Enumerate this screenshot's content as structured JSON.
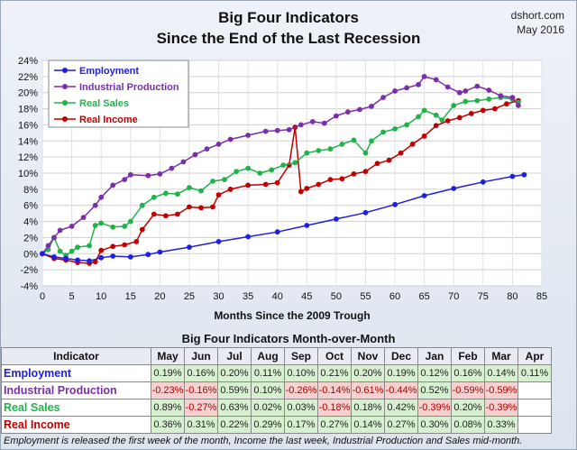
{
  "header": {
    "title_line1": "Big Four Indicators",
    "title_line2": "Since the End of the Last Recession",
    "source": "dshort.com",
    "date": "May 2016"
  },
  "colors": {
    "employment": "#1f1fe0",
    "industrial_production": "#7a2fa8",
    "real_sales": "#22b24c",
    "real_income": "#c00000"
  },
  "chart_data": {
    "type": "line",
    "title": "Big Four Indicators Since the End of the Last Recession",
    "xlabel": "Months Since the 2009 Trough",
    "ylabel": "",
    "xlim": [
      0,
      85
    ],
    "ylim": [
      -4,
      24
    ],
    "x_ticks": [
      0,
      5,
      10,
      15,
      20,
      25,
      30,
      35,
      40,
      45,
      50,
      55,
      60,
      65,
      70,
      75,
      80,
      85
    ],
    "y_ticks": [
      "-4%",
      "-2%",
      "0%",
      "2%",
      "4%",
      "6%",
      "8%",
      "10%",
      "12%",
      "14%",
      "16%",
      "18%",
      "20%",
      "22%",
      "24%"
    ],
    "y_tick_values": [
      -4,
      -2,
      0,
      2,
      4,
      6,
      8,
      10,
      12,
      14,
      16,
      18,
      20,
      22,
      24
    ],
    "grid": true,
    "legend_position": "top-left",
    "series": [
      {
        "name": "Employment",
        "color": "#1f1fe0",
        "points": [
          [
            0,
            0
          ],
          [
            2,
            -0.4
          ],
          [
            4,
            -0.6
          ],
          [
            6,
            -0.8
          ],
          [
            8,
            -0.9
          ],
          [
            10,
            -0.5
          ],
          [
            12,
            -0.3
          ],
          [
            15,
            -0.4
          ],
          [
            18,
            -0.1
          ],
          [
            20,
            0.2
          ],
          [
            25,
            0.8
          ],
          [
            30,
            1.5
          ],
          [
            35,
            2.1
          ],
          [
            40,
            2.7
          ],
          [
            45,
            3.5
          ],
          [
            50,
            4.3
          ],
          [
            55,
            5.1
          ],
          [
            60,
            6.1
          ],
          [
            65,
            7.2
          ],
          [
            70,
            8.1
          ],
          [
            75,
            8.9
          ],
          [
            80,
            9.6
          ],
          [
            82,
            9.8
          ]
        ]
      },
      {
        "name": "Industrial Production",
        "color": "#7a2fa8",
        "points": [
          [
            0,
            0
          ],
          [
            1,
            1.0
          ],
          [
            2,
            2.0
          ],
          [
            3,
            2.9
          ],
          [
            5,
            3.4
          ],
          [
            7,
            4.5
          ],
          [
            9,
            6.0
          ],
          [
            10,
            7.0
          ],
          [
            12,
            8.5
          ],
          [
            14,
            9.2
          ],
          [
            15,
            9.8
          ],
          [
            18,
            9.7
          ],
          [
            20,
            9.9
          ],
          [
            22,
            10.6
          ],
          [
            24,
            11.4
          ],
          [
            26,
            12.3
          ],
          [
            28,
            13.0
          ],
          [
            30,
            13.6
          ],
          [
            32,
            14.2
          ],
          [
            35,
            14.7
          ],
          [
            38,
            15.2
          ],
          [
            40,
            15.3
          ],
          [
            42,
            15.4
          ],
          [
            44,
            16.0
          ],
          [
            46,
            16.4
          ],
          [
            48,
            16.2
          ],
          [
            50,
            17.1
          ],
          [
            52,
            17.6
          ],
          [
            54,
            17.9
          ],
          [
            56,
            18.3
          ],
          [
            58,
            19.4
          ],
          [
            60,
            20.2
          ],
          [
            62,
            20.6
          ],
          [
            64,
            21.0
          ],
          [
            65,
            22.0
          ],
          [
            67,
            21.6
          ],
          [
            69,
            20.7
          ],
          [
            71,
            20.0
          ],
          [
            72,
            20.2
          ],
          [
            74,
            20.8
          ],
          [
            76,
            20.3
          ],
          [
            78,
            19.6
          ],
          [
            80,
            19.4
          ],
          [
            81,
            18.4
          ]
        ]
      },
      {
        "name": "Real Sales",
        "color": "#22b24c",
        "points": [
          [
            0,
            0
          ],
          [
            1,
            0.5
          ],
          [
            2,
            2.0
          ],
          [
            3,
            0.3
          ],
          [
            4,
            -0.2
          ],
          [
            5,
            0.3
          ],
          [
            6,
            0.8
          ],
          [
            8,
            1.0
          ],
          [
            9,
            3.5
          ],
          [
            10,
            3.8
          ],
          [
            12,
            3.3
          ],
          [
            14,
            3.4
          ],
          [
            15,
            4.0
          ],
          [
            17,
            6.0
          ],
          [
            19,
            7.0
          ],
          [
            21,
            7.5
          ],
          [
            23,
            7.4
          ],
          [
            25,
            8.2
          ],
          [
            27,
            7.8
          ],
          [
            29,
            9.0
          ],
          [
            31,
            9.2
          ],
          [
            33,
            10.2
          ],
          [
            35,
            10.6
          ],
          [
            37,
            10.0
          ],
          [
            39,
            10.4
          ],
          [
            41,
            11.0
          ],
          [
            43,
            11.3
          ],
          [
            45,
            12.5
          ],
          [
            47,
            12.8
          ],
          [
            49,
            13.0
          ],
          [
            51,
            13.6
          ],
          [
            53,
            14.1
          ],
          [
            55,
            12.5
          ],
          [
            56,
            14.0
          ],
          [
            58,
            15.1
          ],
          [
            60,
            15.5
          ],
          [
            62,
            16.0
          ],
          [
            64,
            17.0
          ],
          [
            65,
            17.8
          ],
          [
            67,
            17.2
          ],
          [
            68,
            16.6
          ],
          [
            70,
            18.4
          ],
          [
            72,
            18.9
          ],
          [
            74,
            19.0
          ],
          [
            76,
            19.2
          ],
          [
            78,
            19.4
          ],
          [
            80,
            19.2
          ],
          [
            81,
            18.8
          ]
        ]
      },
      {
        "name": "Real Income",
        "color": "#c00000",
        "points": [
          [
            0,
            0
          ],
          [
            2,
            -0.6
          ],
          [
            4,
            -0.8
          ],
          [
            6,
            -1.1
          ],
          [
            8,
            -1.2
          ],
          [
            9,
            -1.0
          ],
          [
            10,
            0.4
          ],
          [
            12,
            0.9
          ],
          [
            14,
            1.1
          ],
          [
            16,
            1.5
          ],
          [
            17,
            3.0
          ],
          [
            19,
            4.9
          ],
          [
            21,
            4.7
          ],
          [
            23,
            4.9
          ],
          [
            25,
            5.8
          ],
          [
            27,
            5.7
          ],
          [
            29,
            5.8
          ],
          [
            30,
            7.3
          ],
          [
            32,
            8.0
          ],
          [
            35,
            8.5
          ],
          [
            38,
            8.6
          ],
          [
            40,
            8.8
          ],
          [
            42,
            11.0
          ],
          [
            43,
            15.7
          ],
          [
            44,
            7.7
          ],
          [
            45,
            8.1
          ],
          [
            47,
            8.6
          ],
          [
            49,
            9.2
          ],
          [
            51,
            9.3
          ],
          [
            53,
            9.9
          ],
          [
            55,
            10.2
          ],
          [
            57,
            11.2
          ],
          [
            59,
            11.6
          ],
          [
            61,
            12.5
          ],
          [
            63,
            13.6
          ],
          [
            65,
            14.6
          ],
          [
            67,
            15.9
          ],
          [
            69,
            16.5
          ],
          [
            71,
            16.9
          ],
          [
            73,
            17.4
          ],
          [
            75,
            17.8
          ],
          [
            77,
            18.0
          ],
          [
            79,
            18.6
          ],
          [
            81,
            19.0
          ]
        ]
      }
    ]
  },
  "table": {
    "title": "Big Four Indicators Month-over-Month",
    "header_indicator": "Indicator",
    "months": [
      "May",
      "Jun",
      "Jul",
      "Aug",
      "Sep",
      "Oct",
      "Nov",
      "Dec",
      "Jan",
      "Feb",
      "Mar",
      "Apr"
    ],
    "rows": [
      {
        "name": "Employment",
        "color": "#1f1fe0",
        "values": [
          "0.19%",
          "0.16%",
          "0.20%",
          "0.11%",
          "0.10%",
          "0.21%",
          "0.20%",
          "0.19%",
          "0.12%",
          "0.16%",
          "0.14%",
          "0.11%"
        ]
      },
      {
        "name": "Industrial Production",
        "color": "#7a2fa8",
        "values": [
          "-0.23%",
          "-0.16%",
          "0.59%",
          "0.10%",
          "-0.26%",
          "-0.14%",
          "-0.61%",
          "-0.44%",
          "0.52%",
          "-0.59%",
          "-0.59%",
          ""
        ]
      },
      {
        "name": "Real Sales",
        "color": "#22b24c",
        "values": [
          "0.89%",
          "-0.27%",
          "0.63%",
          "0.02%",
          "0.03%",
          "-0.18%",
          "0.18%",
          "0.42%",
          "-0.39%",
          "0.20%",
          "-0.39%",
          ""
        ]
      },
      {
        "name": "Real Income",
        "color": "#c00000",
        "values": [
          "0.36%",
          "0.31%",
          "0.22%",
          "0.29%",
          "0.17%",
          "0.27%",
          "0.14%",
          "0.27%",
          "0.30%",
          "0.08%",
          "0.33%",
          ""
        ]
      }
    ]
  },
  "footnote": "Employment is released the first week of the month, Income the last week, Industrial Production and Sales mid-month."
}
